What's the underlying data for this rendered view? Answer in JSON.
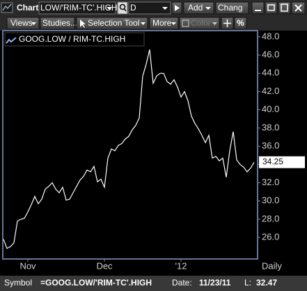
{
  "toolbar": {
    "title": "Chart",
    "symbol": "LOW/'RIM-TC'.HIGH",
    "interval": "D",
    "add": "Add",
    "change": "Chang"
  },
  "toolbar2": {
    "views": "Views",
    "studies": "Studies...",
    "selection": "Selection Tool",
    "more": "More",
    "color": "Color",
    "percent": "%"
  },
  "chart_data": {
    "type": "line",
    "legend": "GOOG.LOW / RIM-TC.HIGH",
    "period": "Daily",
    "color": "#ffffff",
    "last_price": 34.25,
    "values": [
      25.8,
      24.8,
      25.0,
      25.4,
      27.8,
      28.0,
      28.1,
      28.8,
      29.6,
      30.5,
      29.7,
      30.2,
      31.3,
      31.6,
      32.0,
      31.3,
      30.9,
      31.5,
      30.1,
      30.2,
      30.9,
      31.6,
      32.3,
      32.7,
      33.4,
      33.2,
      33.8,
      32.1,
      32.4,
      31.5,
      34.7,
      35.7,
      35.5,
      36.1,
      36.3,
      36.8,
      37.1,
      37.8,
      38.3,
      39.1,
      43.7,
      45.0,
      46.6,
      42.9,
      43.7,
      44.0,
      44.0,
      43.1,
      42.8,
      43.3,
      42.5,
      41.4,
      42.0,
      41.0,
      39.3,
      38.5,
      37.9,
      37.2,
      36.4,
      37.2,
      34.7,
      34.9,
      34.4,
      34.7,
      32.6,
      35.5,
      37.6,
      34.5,
      34.0,
      33.7,
      33.2,
      33.6,
      34.25
    ],
    "xlim": [
      0,
      72
    ],
    "xticks": [
      {
        "value": 7,
        "label": "Nov"
      },
      {
        "value": 29,
        "label": "Dec"
      },
      {
        "value": 51,
        "label": "'12"
      }
    ],
    "ylim": [
      23.64,
      48.68
    ],
    "yticks": [
      {
        "value": 26,
        "label": "26.0"
      },
      {
        "value": 28,
        "label": "28.0"
      },
      {
        "value": 30,
        "label": "30.0"
      },
      {
        "value": 32,
        "label": "32.0"
      },
      {
        "value": 34,
        "label": "34.0"
      },
      {
        "value": 36,
        "label": "36.0"
      },
      {
        "value": 38,
        "label": "38.0"
      },
      {
        "value": 40,
        "label": "40.0"
      },
      {
        "value": 42,
        "label": "42.0"
      },
      {
        "value": 44,
        "label": "44.0"
      },
      {
        "value": 46,
        "label": "46.0"
      },
      {
        "value": 48,
        "label": "48.0"
      }
    ]
  },
  "status": {
    "symbol_label": "Symbol",
    "symbol": "=GOOG.LOW/'RIM-TC'.HIGH",
    "date_label": "Date:",
    "date": "11/23/11",
    "low_label": "L:",
    "low": "32.47"
  }
}
